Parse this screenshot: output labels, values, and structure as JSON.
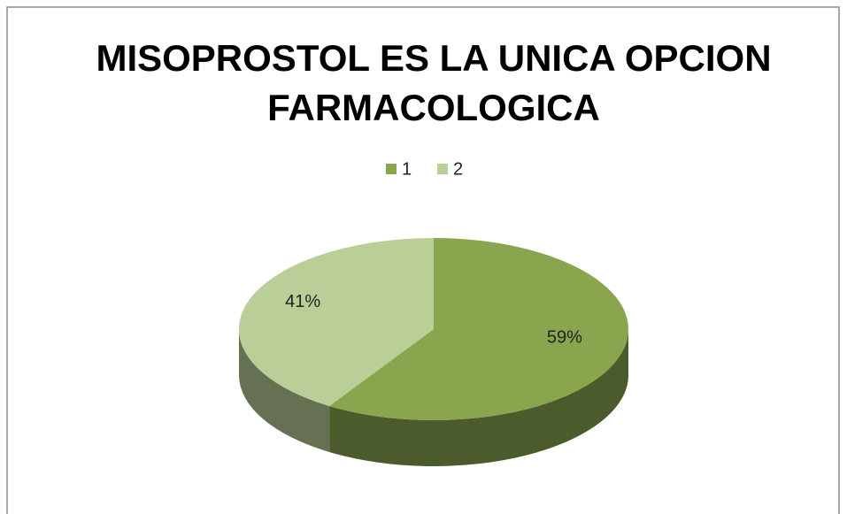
{
  "chart_data": {
    "type": "pie",
    "title": "MISOPROSTOL ES LA UNICA OPCION FARMACOLOGICA",
    "categories": [
      "1",
      "2"
    ],
    "values": [
      59,
      41
    ],
    "value_labels": [
      "59%",
      "41%"
    ],
    "colors": [
      "#89a54e",
      "#bace97"
    ],
    "legend": "top"
  }
}
